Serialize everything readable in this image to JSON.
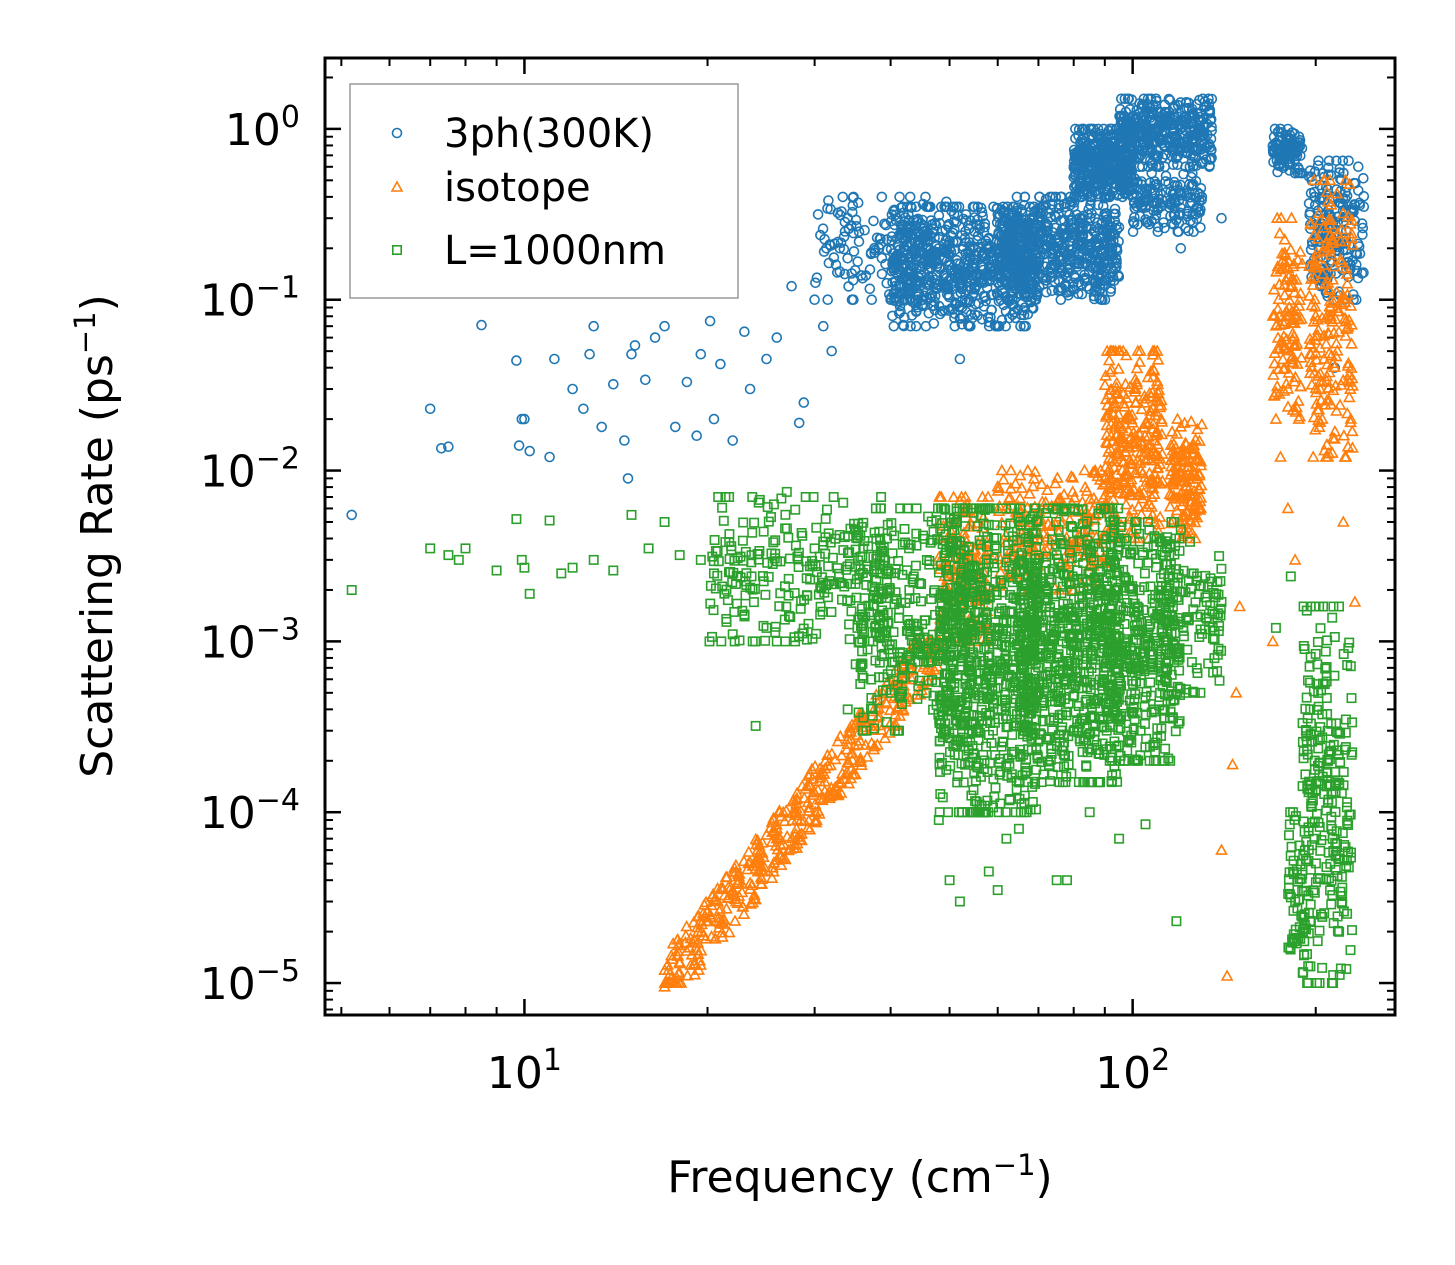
{
  "chart_data": {
    "type": "scatter",
    "xscale": "log",
    "yscale": "log",
    "xlabel": "Frequency (cm",
    "xlabel_sup": "−1",
    "xlabel_end": ")",
    "ylabel": "Scattering Rate (ps",
    "ylabel_sup": "−1",
    "ylabel_end": ")",
    "xlim": [
      4.7,
      270
    ],
    "ylim": [
      6.5e-06,
      2.6
    ],
    "x_ticks": [
      {
        "value": 10,
        "base": "10",
        "exp": "1"
      },
      {
        "value": 100,
        "base": "10",
        "exp": "2"
      }
    ],
    "y_ticks": [
      {
        "value": 1,
        "base": "10",
        "exp": "0"
      },
      {
        "value": 0.1,
        "base": "10",
        "exp": "−1"
      },
      {
        "value": 0.01,
        "base": "10",
        "exp": "−2"
      },
      {
        "value": 0.001,
        "base": "10",
        "exp": "−3"
      },
      {
        "value": 0.0001,
        "base": "10",
        "exp": "−4"
      },
      {
        "value": 1e-05,
        "base": "10",
        "exp": "−5"
      }
    ],
    "legend_position": "top-left",
    "series": [
      {
        "name": "3ph(300K)",
        "marker": "circle",
        "color": "#1f77b4",
        "points": [
          [
            5.2,
            0.0055
          ],
          [
            7,
            0.023
          ],
          [
            7.3,
            0.0135
          ],
          [
            7.5,
            0.0138
          ],
          [
            8.5,
            0.071
          ],
          [
            9.7,
            0.044
          ],
          [
            9.9,
            0.02
          ],
          [
            10,
            0.02
          ],
          [
            9.8,
            0.014
          ],
          [
            10.2,
            0.013
          ],
          [
            11,
            0.012
          ],
          [
            11.2,
            0.045
          ],
          [
            12,
            0.03
          ],
          [
            12.5,
            0.023
          ],
          [
            12.8,
            0.048
          ],
          [
            13,
            0.07
          ],
          [
            13.4,
            0.018
          ],
          [
            14,
            0.032
          ],
          [
            14.6,
            0.015
          ],
          [
            14.8,
            0.009
          ],
          [
            15,
            0.048
          ],
          [
            15.2,
            0.054
          ],
          [
            15.8,
            0.034
          ],
          [
            16.4,
            0.06
          ],
          [
            17,
            0.07
          ],
          [
            17.7,
            0.018
          ],
          [
            18.5,
            0.033
          ],
          [
            19.2,
            0.016
          ],
          [
            19.5,
            0.048
          ],
          [
            20.2,
            0.075
          ],
          [
            20.5,
            0.02
          ],
          [
            21,
            0.042
          ],
          [
            22,
            0.015
          ],
          [
            23,
            0.065
          ],
          [
            23.5,
            0.03
          ],
          [
            25,
            0.045
          ],
          [
            26,
            0.06
          ],
          [
            27.5,
            0.12
          ],
          [
            28.3,
            0.019
          ],
          [
            28.8,
            0.025
          ],
          [
            30,
            0.1
          ],
          [
            31,
            0.07
          ],
          [
            32,
            0.05
          ],
          [
            33,
            0.2
          ],
          [
            34,
            0.3
          ],
          [
            35.5,
            0.25
          ],
          [
            37,
            0.15
          ],
          [
            40,
            0.1
          ],
          [
            42,
            0.25
          ],
          [
            44,
            0.2
          ],
          [
            46,
            0.15
          ],
          [
            48,
            0.2
          ],
          [
            50,
            0.22
          ],
          [
            52,
            0.045
          ],
          [
            55,
            0.25
          ],
          [
            58,
            0.2
          ],
          [
            62,
            0.15
          ],
          [
            65,
            0.25
          ],
          [
            70,
            0.3
          ],
          [
            75,
            0.2
          ],
          [
            80,
            0.35
          ],
          [
            85,
            0.5
          ],
          [
            90,
            0.75
          ],
          [
            95,
            0.6
          ],
          [
            100,
            0.4
          ],
          [
            105,
            0.35
          ],
          [
            110,
            0.25
          ],
          [
            120,
            0.2
          ],
          [
            130,
            0.4
          ],
          [
            140,
            0.3
          ],
          [
            175,
            0.9
          ],
          [
            190,
            0.55
          ],
          [
            205,
            0.35
          ],
          [
            215,
            0.04
          ],
          [
            230,
            0.17
          ]
        ],
        "clusters": [
          {
            "x": [
              30,
              50
            ],
            "y": [
              0.1,
              0.4
            ],
            "n": 150
          },
          {
            "x": [
              40,
              70
            ],
            "y": [
              0.07,
              0.35
            ],
            "n": 700
          },
          {
            "x": [
              60,
              95
            ],
            "y": [
              0.1,
              0.4
            ],
            "n": 600
          },
          {
            "x": [
              80,
              100
            ],
            "y": [
              0.4,
              1.0
            ],
            "n": 400
          },
          {
            "x": [
              95,
              135
            ],
            "y": [
              0.6,
              1.5
            ],
            "n": 400
          },
          {
            "x": [
              100,
              130
            ],
            "y": [
              0.25,
              0.55
            ],
            "n": 150
          },
          {
            "x": [
              170,
              190
            ],
            "y": [
              0.55,
              1.0
            ],
            "n": 100
          },
          {
            "x": [
              195,
              240
            ],
            "y": [
              0.1,
              0.65
            ],
            "n": 200
          }
        ]
      },
      {
        "name": "isotope",
        "marker": "triangle",
        "color": "#ff7f0e",
        "points": [
          [
            17,
            9.5e-06
          ],
          [
            18,
            1.3e-05
          ],
          [
            19,
            1.8e-05
          ],
          [
            20,
            2.3e-05
          ],
          [
            22,
            3.5e-05
          ],
          [
            24,
            5e-05
          ],
          [
            26,
            7e-05
          ],
          [
            28,
            0.0001
          ],
          [
            30,
            0.00013
          ],
          [
            34,
            0.00025
          ],
          [
            38,
            0.0004
          ],
          [
            42,
            0.0006
          ],
          [
            46,
            0.0009
          ],
          [
            140,
            6e-05
          ],
          [
            143,
            1.1e-05
          ],
          [
            146,
            0.00019
          ],
          [
            148,
            0.0005
          ],
          [
            150,
            0.0016
          ],
          [
            170,
            0.001
          ],
          [
            172,
            0.02
          ],
          [
            175,
            0.012
          ],
          [
            180,
            0.006
          ],
          [
            185,
            0.003
          ],
          [
            205,
            0.02
          ],
          [
            222,
            0.005
          ],
          [
            232,
            0.0017
          ]
        ],
        "clusters": [
          {
            "x": [
              17,
              48
            ],
            "y": [
              1e-05,
              0.001
            ],
            "n": 450,
            "line": true
          },
          {
            "x": [
              48,
              58
            ],
            "y": [
              0.001,
              0.007
            ],
            "n": 150
          },
          {
            "x": [
              60,
              90
            ],
            "y": [
              0.002,
              0.01
            ],
            "n": 200
          },
          {
            "x": [
              90,
              112
            ],
            "y": [
              0.004,
              0.05
            ],
            "n": 300
          },
          {
            "x": [
              115,
              130
            ],
            "y": [
              0.004,
              0.02
            ],
            "n": 150
          },
          {
            "x": [
              170,
              190
            ],
            "y": [
              0.02,
              0.3
            ],
            "n": 120
          },
          {
            "x": [
              195,
              230
            ],
            "y": [
              0.012,
              0.5
            ],
            "n": 200
          }
        ]
      },
      {
        "name": "L=1000nm",
        "marker": "square",
        "color": "#2ca02c",
        "points": [
          [
            5.2,
            0.002
          ],
          [
            7,
            0.0035
          ],
          [
            7.5,
            0.0032
          ],
          [
            7.8,
            0.003
          ],
          [
            8,
            0.0035
          ],
          [
            9,
            0.0026
          ],
          [
            9.7,
            0.0052
          ],
          [
            9.9,
            0.003
          ],
          [
            10,
            0.0027
          ],
          [
            10.2,
            0.0019
          ],
          [
            11,
            0.0051
          ],
          [
            11.5,
            0.0025
          ],
          [
            12,
            0.0027
          ],
          [
            13,
            0.003
          ],
          [
            14,
            0.0026
          ],
          [
            15,
            0.0055
          ],
          [
            16,
            0.0035
          ],
          [
            17,
            0.005
          ],
          [
            18,
            0.0032
          ],
          [
            19.5,
            0.003
          ],
          [
            20.5,
            0.0025
          ],
          [
            22,
            0.0011
          ],
          [
            23,
            0.0014
          ],
          [
            24,
            0.00032
          ],
          [
            25,
            0.0012
          ],
          [
            27,
            0.0075
          ],
          [
            29,
            0.007
          ],
          [
            30,
            0.0035
          ],
          [
            33,
            0.0022
          ],
          [
            34,
            0.0004
          ],
          [
            36,
            0.0003
          ],
          [
            40,
            0.0005
          ],
          [
            48,
            9e-05
          ],
          [
            50,
            4e-05
          ],
          [
            52,
            3e-05
          ],
          [
            58,
            4.5e-05
          ],
          [
            60,
            3.5e-05
          ],
          [
            62,
            7e-05
          ],
          [
            65,
            8e-05
          ],
          [
            75,
            4e-05
          ],
          [
            78,
            4e-05
          ],
          [
            85,
            0.0001
          ],
          [
            95,
            7e-05
          ],
          [
            105,
            8.5e-05
          ],
          [
            118,
            2.3e-05
          ],
          [
            140,
            0.0017
          ],
          [
            172,
            0.0012
          ],
          [
            182,
            0.0024
          ]
        ],
        "clusters": [
          {
            "x": [
              20,
              40
            ],
            "y": [
              0.001,
              0.007
            ],
            "n": 250
          },
          {
            "x": [
              35,
              55
            ],
            "y": [
              0.0003,
              0.006
            ],
            "n": 350
          },
          {
            "x": [
              48,
              70
            ],
            "y": [
              0.0001,
              0.006
            ],
            "n": 700
          },
          {
            "x": [
              65,
              95
            ],
            "y": [
              0.00015,
              0.006
            ],
            "n": 700
          },
          {
            "x": [
              90,
              120
            ],
            "y": [
              0.0002,
              0.005
            ],
            "n": 400
          },
          {
            "x": [
              110,
              140
            ],
            "y": [
              0.0005,
              0.004
            ],
            "n": 120
          },
          {
            "x": [
              180,
              195
            ],
            "y": [
              1e-05,
              0.0001
            ],
            "n": 60
          },
          {
            "x": [
              190,
              230
            ],
            "y": [
              1e-05,
              0.0016
            ],
            "n": 250
          }
        ]
      }
    ]
  }
}
